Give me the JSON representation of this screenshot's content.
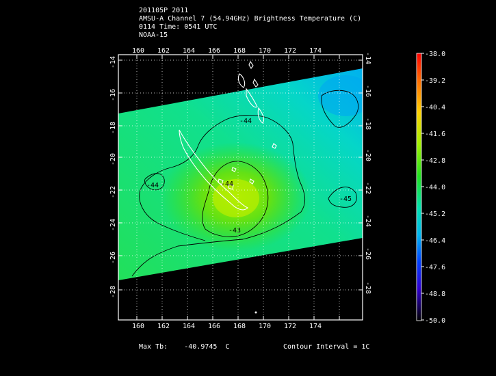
{
  "header": {
    "line1": "201105P 2011",
    "line2": "AMSU-A Channel 7 (54.94GHz) Brightness Temperature (C)",
    "line3": "0114 Time: 0541 UTC",
    "line4": "NOAA-15"
  },
  "map": {
    "lon_labels": [
      "160",
      "162",
      "164",
      "166",
      "168",
      "170",
      "172",
      "174"
    ],
    "lat_labels": [
      "-14",
      "-16",
      "-18",
      "-20",
      "-22",
      "-24",
      "-26",
      "-28"
    ],
    "contour_labels": [
      "-44",
      "-44",
      "-44",
      "-45",
      "-43"
    ]
  },
  "colorbar": {
    "labels": [
      "-38.0",
      "-39.2",
      "-40.4",
      "-41.6",
      "-42.8",
      "-44.0",
      "-45.2",
      "-46.4",
      "-47.6",
      "-48.8",
      "-50.0"
    ]
  },
  "footer": {
    "max_label": "Max Tb:",
    "max_value": "-40.9745",
    "max_unit": "C",
    "contour": "Contour Interval = 1C"
  },
  "colors": {
    "background": "#000000",
    "coast": "#ffffff",
    "contour": "#000000"
  }
}
